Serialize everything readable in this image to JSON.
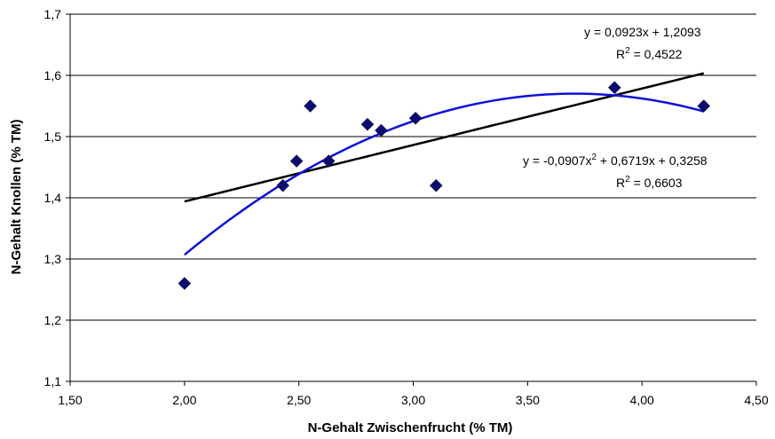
{
  "chart_data": {
    "type": "scatter",
    "xlabel": "N-Gehalt Zwischenfrucht (% TM)",
    "ylabel": "N-Gehalt Knollen (% TM)",
    "xlim": [
      1.5,
      4.5
    ],
    "ylim": [
      1.1,
      1.7
    ],
    "x_ticks": [
      "1,50",
      "2,00",
      "2,50",
      "3,00",
      "3,50",
      "4,00",
      "4,50"
    ],
    "x_tick_values": [
      1.5,
      2.0,
      2.5,
      3.0,
      3.5,
      4.0,
      4.5
    ],
    "y_ticks": [
      "1,1",
      "1,2",
      "1,3",
      "1,4",
      "1,5",
      "1,6",
      "1,7"
    ],
    "y_tick_values": [
      1.1,
      1.2,
      1.3,
      1.4,
      1.5,
      1.6,
      1.7
    ],
    "grid": "horizontal",
    "series": [
      {
        "marker": "diamond",
        "color": "#0c0c6e",
        "points": [
          {
            "x": 2.0,
            "y": 1.26
          },
          {
            "x": 2.43,
            "y": 1.42
          },
          {
            "x": 2.49,
            "y": 1.46
          },
          {
            "x": 2.55,
            "y": 1.55
          },
          {
            "x": 2.63,
            "y": 1.46
          },
          {
            "x": 2.8,
            "y": 1.52
          },
          {
            "x": 2.86,
            "y": 1.51
          },
          {
            "x": 3.01,
            "y": 1.53
          },
          {
            "x": 3.1,
            "y": 1.42
          },
          {
            "x": 3.88,
            "y": 1.58
          },
          {
            "x": 4.27,
            "y": 1.55
          }
        ]
      }
    ],
    "trendlines": [
      {
        "kind": "linear",
        "color": "#000000",
        "coefficients": {
          "a": 0.0923,
          "b": 1.2093
        },
        "x_range": [
          2.0,
          4.27
        ],
        "equation": "y = 0,0923x + 1,2093",
        "r2_label": "R",
        "r2_value": " = 0,4522"
      },
      {
        "kind": "polynomial",
        "color": "#1010d8",
        "coefficients": {
          "a": -0.0907,
          "b": 0.6719,
          "c": 0.3258
        },
        "x_range": [
          2.0,
          4.27
        ],
        "equation_part1": "y = -0,0907x",
        "equation_part2": " + 0,6719x + 0,3258",
        "r2_label": "R",
        "r2_value": " = 0,6603"
      }
    ]
  }
}
